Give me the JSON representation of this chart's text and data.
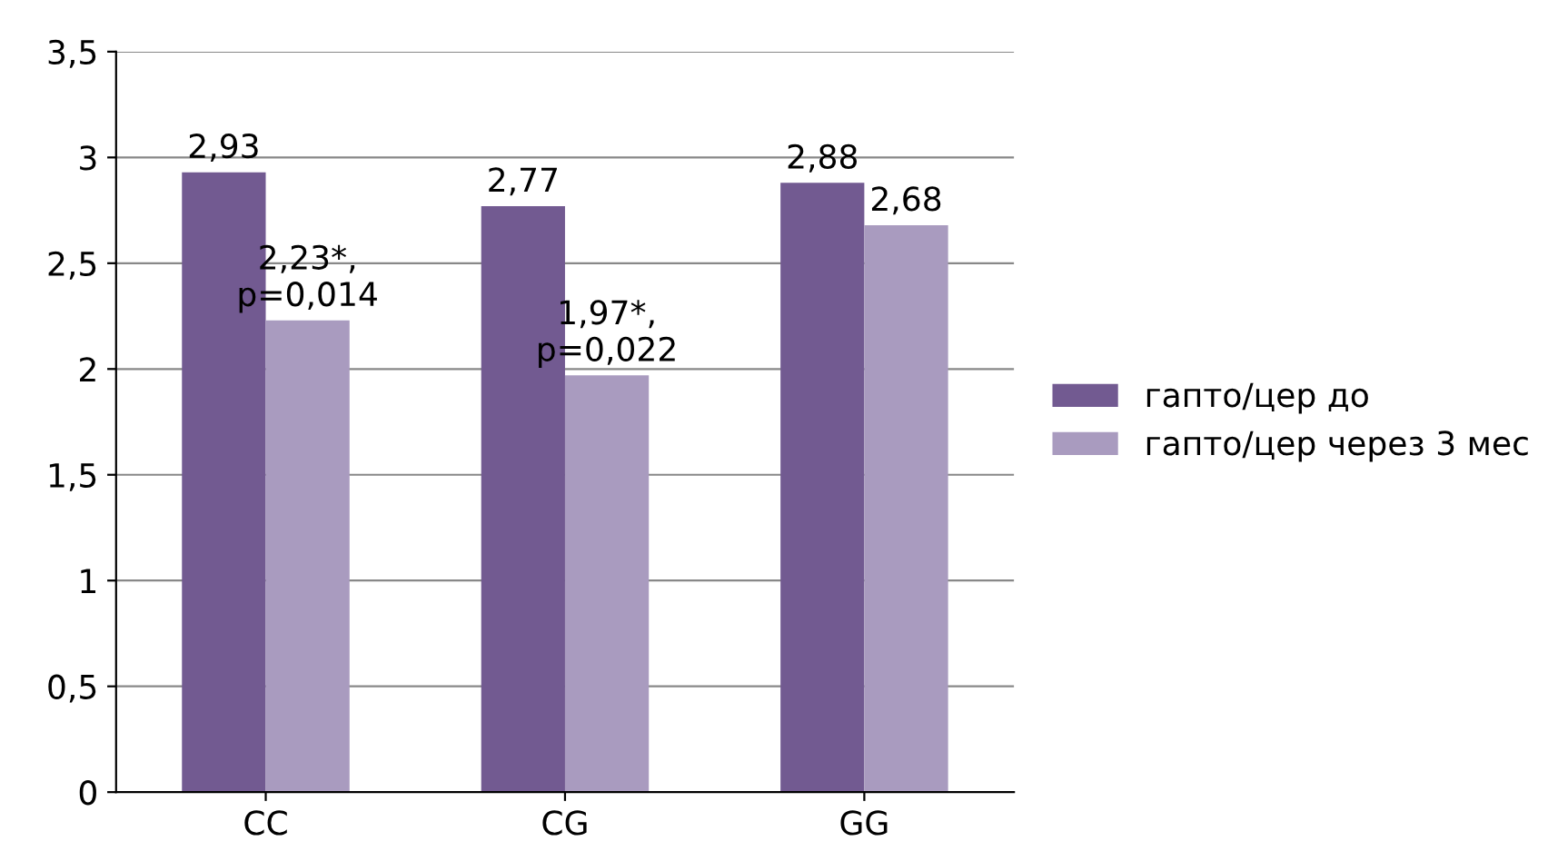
{
  "chart_data": {
    "type": "bar",
    "categories": [
      "CC",
      "CG",
      "GG"
    ],
    "series": [
      {
        "name": "гапто/цер до",
        "color": "#725a91",
        "values": [
          2.93,
          2.77,
          2.88
        ],
        "value_labels": [
          "2,93",
          "2,77",
          "2,88"
        ]
      },
      {
        "name": "гапто/цер через 3 мес",
        "color": "#a99bbf",
        "values": [
          2.23,
          1.97,
          2.68
        ],
        "value_labels": [
          "2,23*,\np=0,014",
          "1,97*,\np=0,022",
          "2,68"
        ]
      }
    ],
    "ylim": [
      0,
      3.5
    ],
    "yticks": [
      0,
      {
        "value": 0.5,
        "label": "0,5"
      },
      1,
      {
        "value": 1.5,
        "label": "1,5"
      },
      2,
      {
        "value": 2.5,
        "label": "2,5"
      },
      3,
      {
        "value": 3.5,
        "label": "3,5"
      }
    ],
    "grid": "y",
    "legend": "right"
  }
}
